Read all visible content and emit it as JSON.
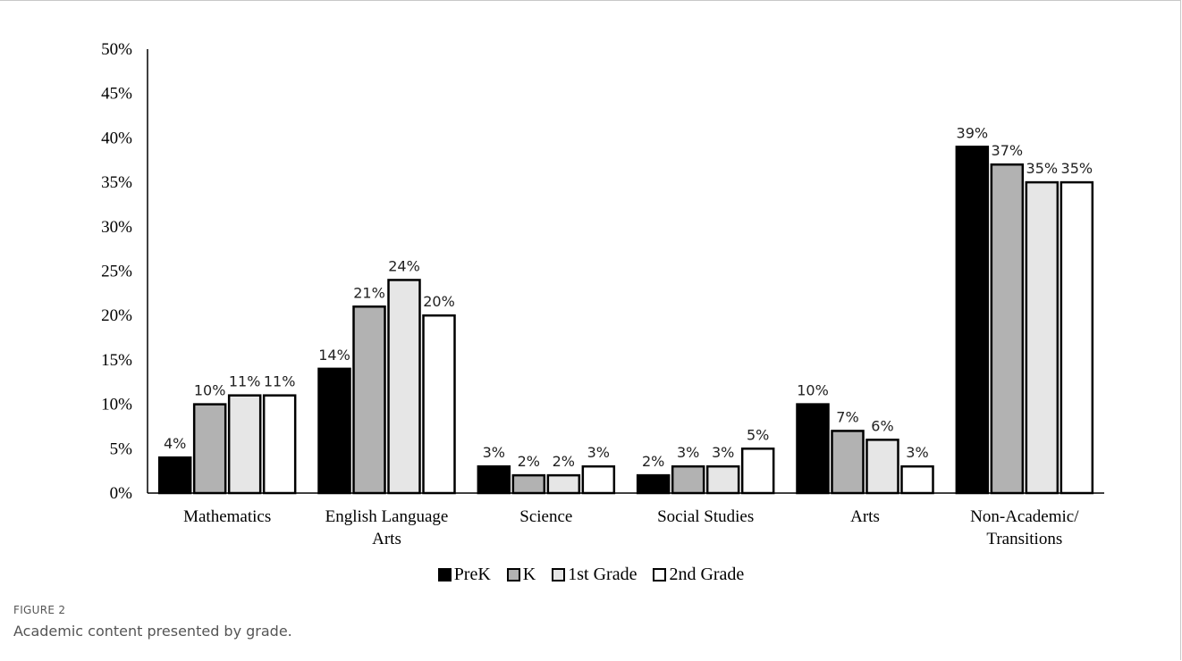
{
  "chart_data": {
    "type": "bar",
    "categories": [
      "Mathematics",
      "English Language Arts",
      "Science",
      "Social Studies",
      "Arts",
      "Non-Academic/ Transitions"
    ],
    "category_lines": [
      [
        "Mathematics"
      ],
      [
        "English Language",
        "Arts"
      ],
      [
        "Science"
      ],
      [
        "Social Studies"
      ],
      [
        "Arts"
      ],
      [
        "Non-Academic/",
        "Transitions"
      ]
    ],
    "series": [
      {
        "name": "PreK",
        "color": "#000000",
        "values": [
          4,
          14,
          3,
          2,
          10,
          39
        ],
        "labels": [
          "4%",
          "14%",
          "3%",
          "2%",
          "10%",
          "39%"
        ]
      },
      {
        "name": "K",
        "color": "#b2b2b2",
        "values": [
          10,
          21,
          2,
          3,
          7,
          37
        ],
        "labels": [
          "10%",
          "21%",
          "2%",
          "3%",
          "7%",
          "37%"
        ]
      },
      {
        "name": "1st Grade",
        "color": "#e6e6e6",
        "values": [
          11,
          24,
          2,
          3,
          6,
          35
        ],
        "labels": [
          "11%",
          "24%",
          "2%",
          "3%",
          "6%",
          "35%"
        ]
      },
      {
        "name": "2nd Grade",
        "color": "#ffffff",
        "values": [
          11,
          20,
          3,
          5,
          3,
          35
        ],
        "labels": [
          "11%",
          "20%",
          "3%",
          "5%",
          "3%",
          "35%"
        ]
      }
    ],
    "ylim": [
      0,
      50
    ],
    "yticks": [
      0,
      5,
      10,
      15,
      20,
      25,
      30,
      35,
      40,
      45,
      50
    ],
    "ytick_labels": [
      "0%",
      "5%",
      "10%",
      "15%",
      "20%",
      "25%",
      "30%",
      "35%",
      "40%",
      "45%",
      "50%"
    ],
    "grid": false,
    "legend_position": "bottom"
  },
  "figure": {
    "label": "FIGURE 2",
    "caption": "Academic content presented by grade."
  }
}
